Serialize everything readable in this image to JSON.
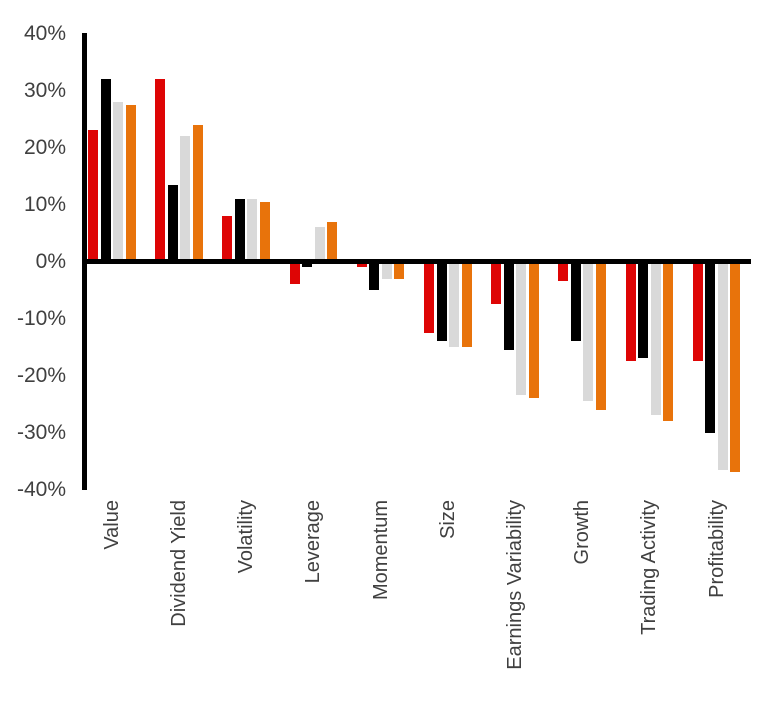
{
  "chart_data": {
    "type": "bar",
    "title": "",
    "categories": [
      "Value",
      "Dividend Yield",
      "Volatility",
      "Leverage",
      "Momentum",
      "Size",
      "Earnings Variability",
      "Growth",
      "Trading Activity",
      "Profitability"
    ],
    "series": [
      {
        "name": "red-series",
        "color": "#de0505",
        "values": [
          23,
          32,
          8,
          -4,
          -1,
          -12.5,
          -7.5,
          -3.5,
          -17.5,
          -17.5
        ]
      },
      {
        "name": "black-series",
        "color": "#000000",
        "values": [
          32,
          13.5,
          11,
          -1,
          -5,
          -14,
          -15.5,
          -14,
          -17,
          -30
        ]
      },
      {
        "name": "gray-series",
        "color": "#d9d9d9",
        "values": [
          28,
          22,
          11,
          6,
          -3,
          -15,
          -23.5,
          -24.5,
          -27,
          -36.5
        ]
      },
      {
        "name": "orange-series",
        "color": "#e8730b",
        "values": [
          27.5,
          24,
          10.5,
          7,
          -3,
          -15,
          -24,
          -26,
          -28,
          -37
        ]
      }
    ],
    "y_ticks": [
      "40%",
      "30%",
      "20%",
      "10%",
      "0%",
      "-10%",
      "-20%",
      "-30%",
      "-40%"
    ],
    "ylim": [
      -40,
      40
    ],
    "xlabel": "",
    "ylabel": "",
    "grid": false,
    "legend": "none",
    "axis_color": "#000000",
    "tick_label_color": "#404040"
  }
}
